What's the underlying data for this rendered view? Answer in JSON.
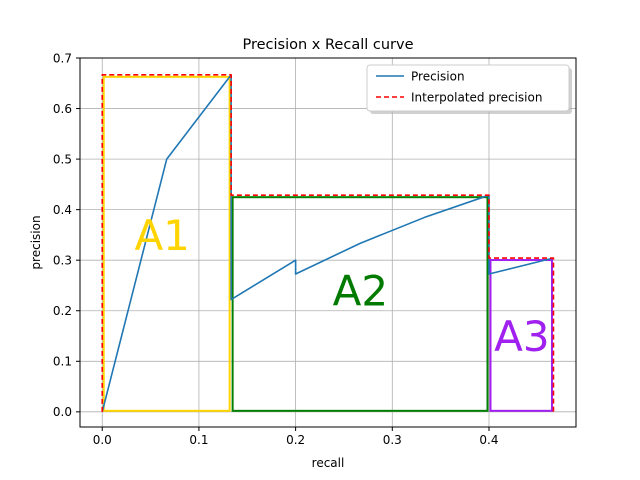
{
  "chart_data": {
    "type": "line",
    "title": "Precision x Recall curve",
    "xlabel": "recall",
    "ylabel": "precision",
    "xlim": [
      -0.023,
      0.49
    ],
    "ylim": [
      -0.03,
      0.7
    ],
    "xticks": [
      "0.0",
      "0.1",
      "0.2",
      "0.3",
      "0.4"
    ],
    "yticks": [
      "0.0",
      "0.1",
      "0.2",
      "0.3",
      "0.4",
      "0.5",
      "0.6",
      "0.7"
    ],
    "xtick_values": [
      0.0,
      0.1,
      0.2,
      0.3,
      0.4
    ],
    "ytick_values": [
      0.0,
      0.1,
      0.2,
      0.3,
      0.4,
      0.5,
      0.6,
      0.7
    ],
    "grid": true,
    "legend_position": "top-right",
    "series": [
      {
        "name": "Precision",
        "color": "#1f77b4",
        "style": "solid",
        "x": [
          0.0,
          0.0667,
          0.1333,
          0.1333,
          0.2,
          0.2,
          0.2667,
          0.3333,
          0.4,
          0.4,
          0.4667
        ],
        "y": [
          0.0,
          0.5,
          0.6667,
          0.2222,
          0.3,
          0.2727,
          0.3333,
          0.3846,
          0.4286,
          0.2727,
          0.3043
        ]
      },
      {
        "name": "Interpolated precision",
        "color": "#ff0000",
        "style": "dashed",
        "x": [
          0.0,
          0.0,
          0.1333,
          0.1333,
          0.4,
          0.4,
          0.4667,
          0.4667
        ],
        "y": [
          0.0,
          0.6667,
          0.6667,
          0.4286,
          0.4286,
          0.3043,
          0.3043,
          0.0
        ]
      }
    ],
    "regions": [
      {
        "label": "A1",
        "color": "#ffd400",
        "stroke": "#ffd400",
        "x0": 0.0,
        "x1": 0.1333,
        "y0": 0.0,
        "y1": 0.6667,
        "label_x": 0.062,
        "label_y": 0.35
      },
      {
        "label": "A2",
        "color": "#007b00",
        "stroke": "#008000",
        "x0": 0.1333,
        "x1": 0.4,
        "y0": 0.0,
        "y1": 0.4286,
        "label_x": 0.267,
        "label_y": 0.24
      },
      {
        "label": "A3",
        "color": "#a020f0",
        "stroke": "#a020f0",
        "x0": 0.4,
        "x1": 0.4667,
        "y0": 0.0,
        "y1": 0.3043,
        "label_x": 0.434,
        "label_y": 0.15
      }
    ]
  }
}
